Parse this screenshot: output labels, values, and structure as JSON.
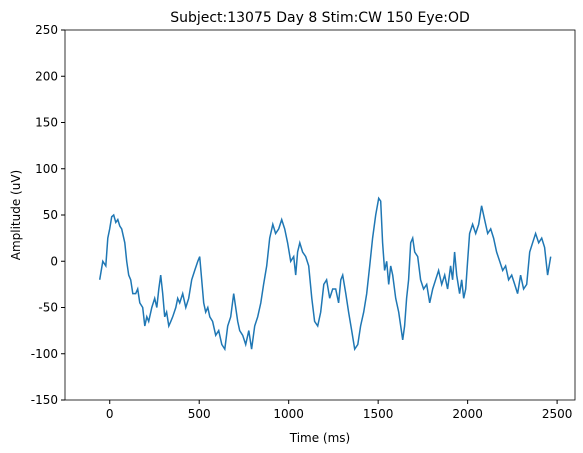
{
  "chart_data": {
    "type": "line",
    "title": "Subject:13075 Day 8 Stim:CW 150 Eye:OD",
    "xlabel": "Time (ms)",
    "ylabel": "Amplitude (uV)",
    "xlim": [
      -250,
      2600
    ],
    "ylim": [
      -150,
      250
    ],
    "xticks": [
      0,
      500,
      1000,
      1500,
      2000,
      2500
    ],
    "yticks": [
      -150,
      -100,
      -50,
      0,
      50,
      100,
      150,
      200,
      250
    ],
    "grid": false,
    "x": [
      -56,
      -39,
      -22,
      -11,
      0,
      11,
      22,
      34,
      45,
      56,
      67,
      84,
      95,
      106,
      117,
      129,
      145,
      156,
      168,
      184,
      196,
      207,
      218,
      235,
      251,
      263,
      274,
      285,
      296,
      307,
      318,
      330,
      341,
      352,
      369,
      380,
      391,
      408,
      425,
      441,
      458,
      475,
      492,
      503,
      514,
      525,
      536,
      548,
      559,
      575,
      592,
      609,
      626,
      643,
      659,
      676,
      693,
      704,
      715,
      726,
      743,
      760,
      777,
      793,
      810,
      827,
      844,
      860,
      877,
      894,
      911,
      927,
      944,
      961,
      978,
      994,
      1011,
      1028,
      1039,
      1050,
      1062,
      1078,
      1095,
      1112,
      1129,
      1145,
      1162,
      1179,
      1196,
      1212,
      1229,
      1246,
      1263,
      1279,
      1291,
      1302,
      1319,
      1335,
      1352,
      1369,
      1386,
      1402,
      1419,
      1436,
      1453,
      1469,
      1486,
      1503,
      1514,
      1525,
      1536,
      1548,
      1559,
      1570,
      1581,
      1598,
      1615,
      1626,
      1637,
      1648,
      1659,
      1670,
      1682,
      1693,
      1704,
      1721,
      1737,
      1754,
      1771,
      1788,
      1805,
      1821,
      1838,
      1855,
      1872,
      1888,
      1905,
      1916,
      1927,
      1939,
      1955,
      1967,
      1978,
      1989,
      2000,
      2011,
      2028,
      2045,
      2062,
      2078,
      2095,
      2112,
      2129,
      2145,
      2162,
      2179,
      2196,
      2212,
      2229,
      2246,
      2263,
      2279,
      2296,
      2313,
      2330,
      2347,
      2363,
      2380,
      2397,
      2414,
      2430,
      2447,
      2464
    ],
    "series": [
      {
        "name": "amplitude",
        "color": "#1f77b4",
        "values": [
          -20,
          0,
          -5,
          25,
          35,
          48,
          50,
          42,
          45,
          38,
          35,
          20,
          0,
          -15,
          -20,
          -35,
          -35,
          -30,
          -45,
          -50,
          -70,
          -60,
          -65,
          -50,
          -40,
          -50,
          -30,
          -15,
          -35,
          -60,
          -55,
          -70,
          -65,
          -60,
          -50,
          -40,
          -45,
          -35,
          -50,
          -40,
          -20,
          -10,
          0,
          5,
          -20,
          -45,
          -55,
          -50,
          -60,
          -65,
          -80,
          -75,
          -90,
          -95,
          -70,
          -60,
          -35,
          -50,
          -65,
          -75,
          -80,
          -90,
          -75,
          -95,
          -70,
          -60,
          -45,
          -25,
          -5,
          25,
          40,
          30,
          35,
          45,
          35,
          20,
          0,
          5,
          -15,
          10,
          20,
          10,
          5,
          -5,
          -40,
          -65,
          -70,
          -55,
          -25,
          -20,
          -40,
          -30,
          -30,
          -45,
          -20,
          -15,
          -35,
          -55,
          -75,
          -95,
          -90,
          -70,
          -55,
          -35,
          -5,
          25,
          50,
          68,
          65,
          20,
          -10,
          0,
          -25,
          -5,
          -15,
          -40,
          -55,
          -70,
          -85,
          -70,
          -40,
          -20,
          20,
          25,
          10,
          5,
          -20,
          -30,
          -25,
          -45,
          -30,
          -20,
          -10,
          -25,
          -15,
          -30,
          -5,
          -20,
          10,
          -15,
          -35,
          -20,
          -40,
          -30,
          0,
          30,
          40,
          30,
          40,
          60,
          45,
          30,
          35,
          25,
          10,
          0,
          -10,
          -5,
          -20,
          -15,
          -25,
          -35,
          -15,
          -30,
          -25,
          10,
          20,
          30,
          20,
          25,
          15,
          -15,
          5
        ]
      }
    ]
  }
}
